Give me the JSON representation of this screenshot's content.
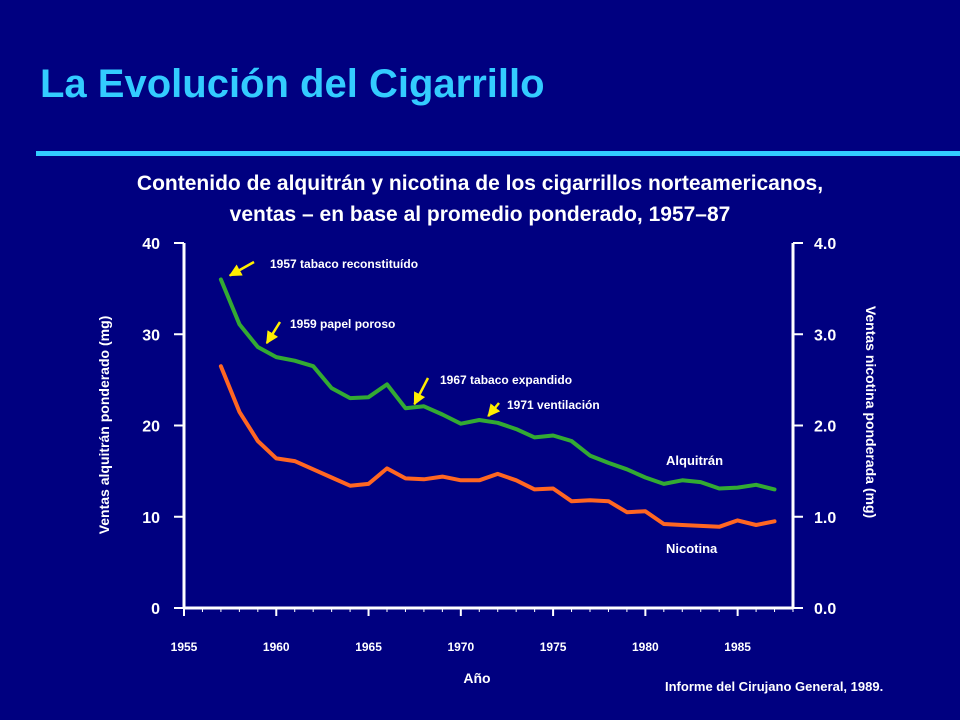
{
  "slide": {
    "title": "La Evolución del Cigarrillo",
    "subtitle_line1": "Contenido de alquitrán y nicotina de los cigarrillos norteamericanos,",
    "subtitle_line2": "ventas – en base al promedio ponderado, 1957–87",
    "source": "Informe del Cirujano General, 1989."
  },
  "colors": {
    "background": "#000080",
    "title": "#33ccff",
    "tar_line": "#33aa33",
    "nicotine_line": "#ff6622",
    "arrows": "#ffee00",
    "text": "#ffffff"
  },
  "chart_data": {
    "type": "line",
    "xlabel": "Año",
    "ylabel": "Ventas alquitrán ponderado (mg)",
    "y2label": "Ventas nicotina ponderada (mg)",
    "xlim": [
      1955,
      1988
    ],
    "ylim": [
      0,
      40
    ],
    "y2lim": [
      0.0,
      4.0
    ],
    "x_ticks": [
      1955,
      1960,
      1965,
      1970,
      1975,
      1980,
      1985
    ],
    "y_ticks": [
      "0",
      "10",
      "20",
      "30",
      "40"
    ],
    "y2_ticks": [
      "0.0",
      "1.0",
      "2.0",
      "3.0",
      "4.0"
    ],
    "grid": false,
    "series": [
      {
        "name": "Alquitrán",
        "axis": "left",
        "x": [
          1957,
          1958,
          1959,
          1960,
          1961,
          1962,
          1963,
          1964,
          1965,
          1966,
          1967,
          1968,
          1969,
          1970,
          1971,
          1972,
          1973,
          1974,
          1975,
          1976,
          1977,
          1978,
          1979,
          1980,
          1981,
          1982,
          1983,
          1984,
          1985,
          1986,
          1987
        ],
        "values": [
          36.0,
          31.1,
          28.6,
          27.5,
          27.1,
          26.5,
          24.1,
          23.0,
          23.1,
          24.5,
          21.9,
          22.1,
          21.2,
          20.2,
          20.6,
          20.3,
          19.6,
          18.7,
          18.9,
          18.3,
          16.7,
          15.9,
          15.2,
          14.3,
          13.6,
          14.0,
          13.8,
          13.1,
          13.2,
          13.5,
          13.0
        ]
      },
      {
        "name": "Nicotina",
        "axis": "right",
        "x": [
          1957,
          1958,
          1959,
          1960,
          1961,
          1962,
          1963,
          1964,
          1965,
          1966,
          1967,
          1968,
          1969,
          1970,
          1971,
          1972,
          1973,
          1974,
          1975,
          1976,
          1977,
          1978,
          1979,
          1980,
          1981,
          1982,
          1983,
          1984,
          1985,
          1986,
          1987
        ],
        "values": [
          2.65,
          2.15,
          1.83,
          1.64,
          1.61,
          1.52,
          1.43,
          1.34,
          1.36,
          1.53,
          1.42,
          1.41,
          1.44,
          1.4,
          1.4,
          1.47,
          1.4,
          1.3,
          1.31,
          1.17,
          1.18,
          1.17,
          1.05,
          1.06,
          0.92,
          0.91,
          0.9,
          0.89,
          0.96,
          0.91,
          0.95
        ]
      }
    ],
    "annotations": [
      {
        "text": "1957 tabaco reconstituído",
        "year": 1957
      },
      {
        "text": "1959 papel poroso",
        "year": 1959
      },
      {
        "text": "1967 tabaco expandido",
        "year": 1967
      },
      {
        "text": "1971 ventilación",
        "year": 1971
      }
    ]
  }
}
